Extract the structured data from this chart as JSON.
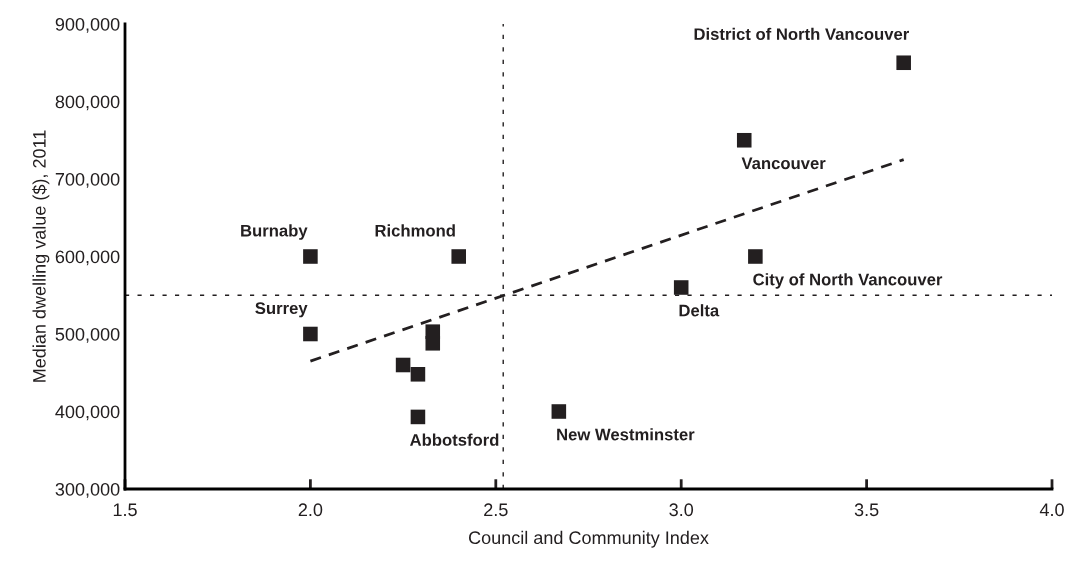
{
  "chart_data": {
    "type": "scatter",
    "xlabel": "Council and Community Index",
    "ylabel": "Median dwelling value ($), 2011",
    "xlim": [
      1.5,
      4.0
    ],
    "ylim": [
      300000,
      900000
    ],
    "xticks": [
      {
        "value": 1.5,
        "label": "1.5"
      },
      {
        "value": 2.0,
        "label": "2.0"
      },
      {
        "value": 2.5,
        "label": "2.5"
      },
      {
        "value": 3.0,
        "label": "3.0"
      },
      {
        "value": 3.5,
        "label": "3.5"
      },
      {
        "value": 4.0,
        "label": "4.0"
      }
    ],
    "yticks": [
      {
        "value": 300000,
        "label": "300,000"
      },
      {
        "value": 400000,
        "label": "400,000"
      },
      {
        "value": 500000,
        "label": "500,000"
      },
      {
        "value": 600000,
        "label": "600,000"
      },
      {
        "value": 700000,
        "label": "700,000"
      },
      {
        "value": 800000,
        "label": "800,000"
      },
      {
        "value": 900000,
        "label": "900,000"
      }
    ],
    "grid": false,
    "legend": false,
    "series": [
      {
        "color": "#231f20",
        "marker": "square",
        "x": [
          2.0,
          2.4,
          2.0,
          2.33,
          2.33,
          2.25,
          2.29,
          2.29,
          3.6,
          3.17,
          3.2,
          3.0,
          2.67
        ],
        "values": [
          600000,
          600000,
          500000,
          503000,
          488000,
          460000,
          448000,
          393000,
          850000,
          750000,
          600000,
          560000,
          400000
        ]
      },
      {
        "type": "line",
        "color": "#231f20",
        "marker": "none",
        "line_style": "dashed",
        "x": [
          2.0,
          3.6
        ],
        "values": [
          465000,
          725000
        ]
      }
    ],
    "ref_lines": [
      {
        "axis": "y",
        "value": 550000,
        "color": "#231f20",
        "line_style": "dashed"
      },
      {
        "axis": "x",
        "value": 2.52,
        "color": "#231f20",
        "line_style": "dashed"
      }
    ],
    "annotations": [
      {
        "text": "Burnaby",
        "x": 2.0,
        "y": 600000
      },
      {
        "text": "Richmond",
        "x": 2.4,
        "y": 600000
      },
      {
        "text": "Surrey",
        "x": 2.0,
        "y": 500000
      },
      {
        "text": "Abbotsford",
        "x": 2.29,
        "y": 393000
      },
      {
        "text": "District of North Vancouver",
        "x": 3.6,
        "y": 850000
      },
      {
        "text": "Vancouver",
        "x": 3.17,
        "y": 750000
      },
      {
        "text": "City of North Vancouver",
        "x": 3.2,
        "y": 600000
      },
      {
        "text": "Delta",
        "x": 3.0,
        "y": 560000
      },
      {
        "text": "New Westminster",
        "x": 2.67,
        "y": 400000
      }
    ]
  }
}
